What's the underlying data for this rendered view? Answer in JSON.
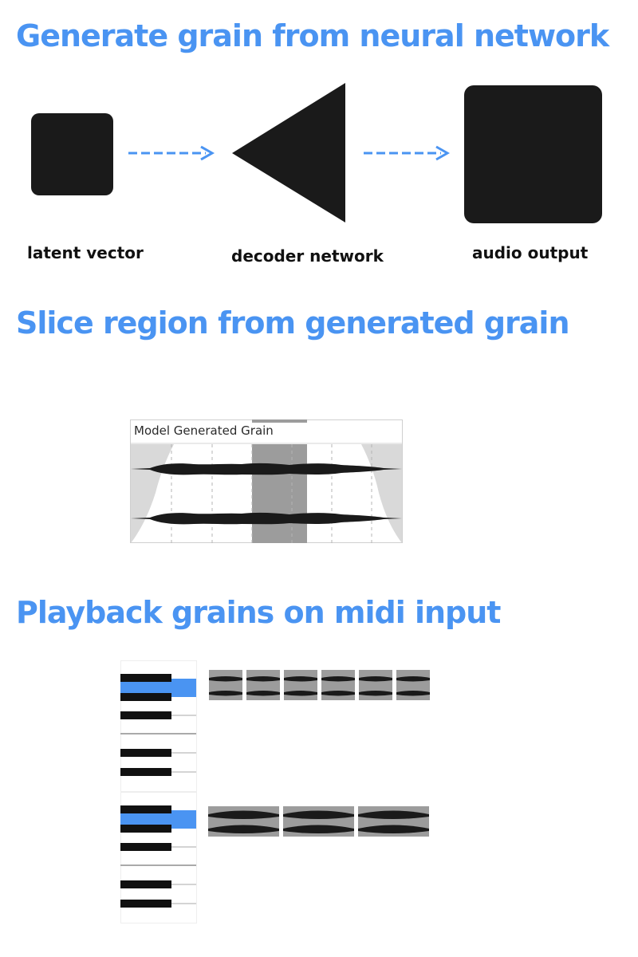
{
  "colors": {
    "accent": "#4a94f2",
    "shape": "#1a1a1a",
    "region": "#9c9c9c"
  },
  "sections": [
    {
      "heading": "Generate grain from neural network"
    },
    {
      "heading": "Slice region from generated grain"
    },
    {
      "heading": "Playback grains on midi input"
    }
  ],
  "pipeline": {
    "nodes": [
      {
        "label": "latent vector",
        "shape": "small-square"
      },
      {
        "label": "decoder network",
        "shape": "triangle"
      },
      {
        "label": "audio output",
        "shape": "large-square"
      }
    ],
    "arrow_text": "------>"
  },
  "waveform_panel": {
    "label": "Model Generated Grain"
  },
  "midi_examples": [
    {
      "highlighted_key": "top",
      "grain_count": 6
    },
    {
      "highlighted_key": "top",
      "grain_count": 3
    }
  ]
}
